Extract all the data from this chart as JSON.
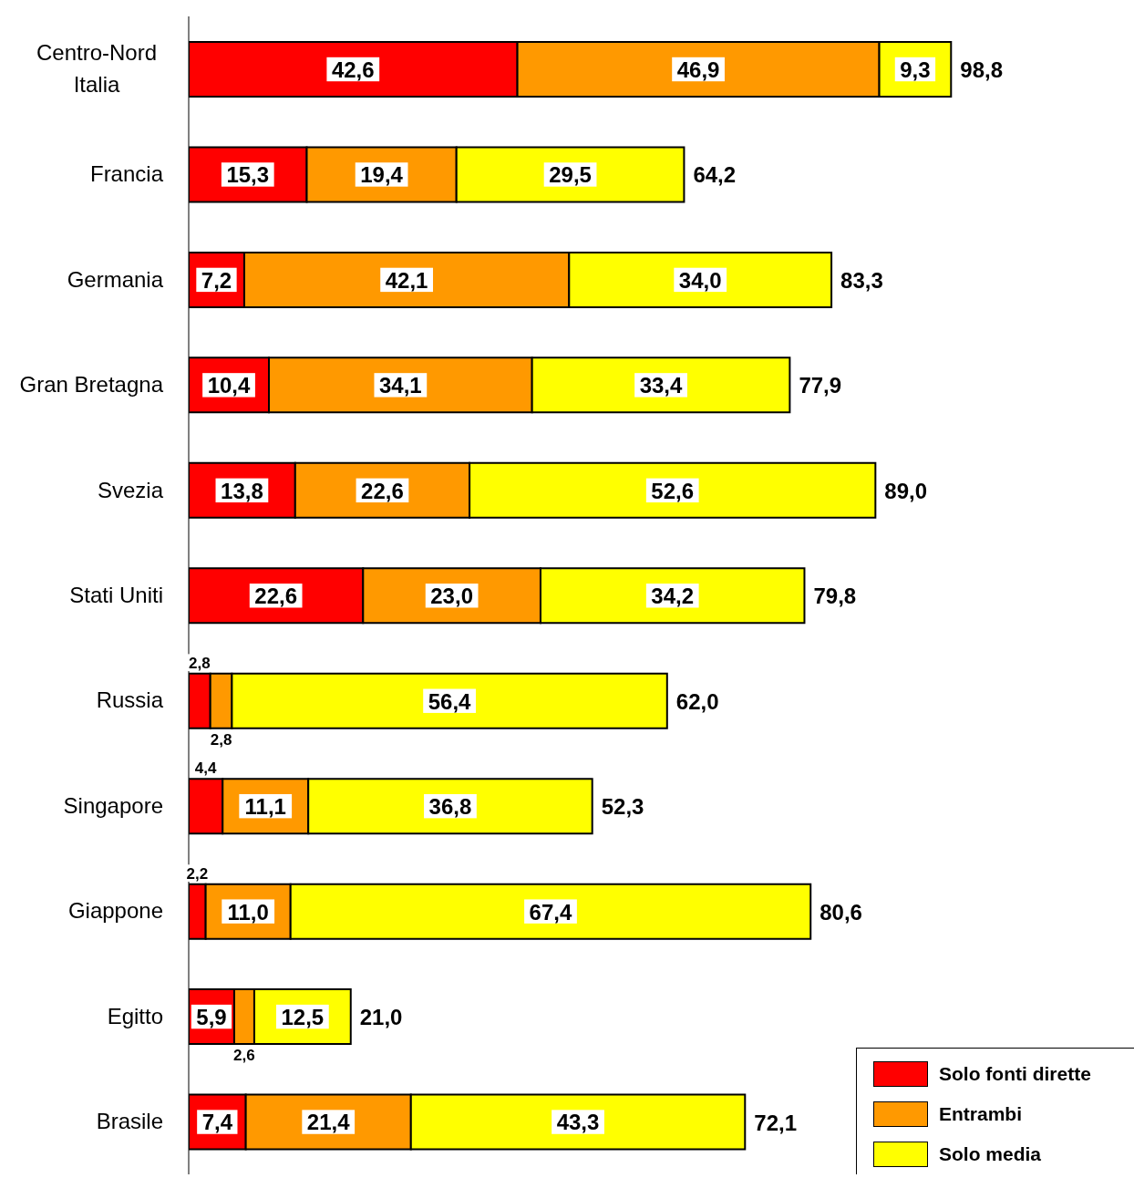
{
  "chart_data": {
    "type": "bar",
    "orientation": "horizontal",
    "stacked": true,
    "categories": [
      "Centro-Nord Italia",
      "Francia",
      "Germania",
      "Gran Bretagna",
      "Svezia",
      "Stati Uniti",
      "Russia",
      "Singapore",
      "Giappone",
      "Egitto",
      "Brasile"
    ],
    "series": [
      {
        "name": "Solo fonti dirette",
        "color": "#ff0000",
        "values": [
          42.6,
          15.3,
          7.2,
          10.4,
          13.8,
          22.6,
          2.8,
          4.4,
          2.2,
          5.9,
          7.4
        ],
        "value_labels": [
          "42,6",
          "15,3",
          "7,2",
          "10,4",
          "13,8",
          "22,6",
          "2,8",
          "4,4",
          "2,2",
          "5,9",
          "7,4"
        ]
      },
      {
        "name": "Entrambi",
        "color": "#ff9900",
        "values": [
          46.9,
          19.4,
          42.1,
          34.1,
          22.6,
          23.0,
          2.8,
          11.1,
          11.0,
          2.6,
          21.4
        ],
        "value_labels": [
          "46,9",
          "19,4",
          "42,1",
          "34,1",
          "22,6",
          "23,0",
          "2,8",
          "11,1",
          "11,0",
          "2,6",
          "21,4"
        ]
      },
      {
        "name": "Solo media",
        "color": "#ffff00",
        "values": [
          9.3,
          29.5,
          34.0,
          33.4,
          52.6,
          34.2,
          56.4,
          36.8,
          67.4,
          12.5,
          43.3
        ],
        "value_labels": [
          "9,3",
          "29,5",
          "34,0",
          "33,4",
          "52,6",
          "34,2",
          "56,4",
          "36,8",
          "67,4",
          "12,5",
          "43,3"
        ]
      }
    ],
    "totals": [
      "98,8",
      "64,2",
      "83,3",
      "77,9",
      "89,0",
      "79,8",
      "62,0",
      "52,3",
      "80,6",
      "21,0",
      "72,1"
    ],
    "legend": "bottom right",
    "grid": false
  }
}
